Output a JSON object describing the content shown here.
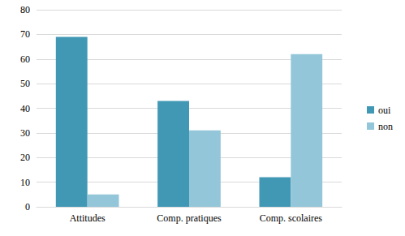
{
  "chart_data": {
    "type": "bar",
    "categories": [
      "Attitudes",
      "Comp. pratiques",
      "Comp. scolaires"
    ],
    "series": [
      {
        "name": "oui",
        "color": "#4198b5",
        "values": [
          69,
          43,
          12
        ]
      },
      {
        "name": "non",
        "color": "#93c6d9",
        "values": [
          5,
          31,
          62
        ]
      }
    ],
    "ylim": [
      0,
      80
    ],
    "yticks": [
      0,
      10,
      20,
      30,
      40,
      50,
      60,
      70,
      80
    ],
    "grid": true,
    "legend": "right"
  }
}
